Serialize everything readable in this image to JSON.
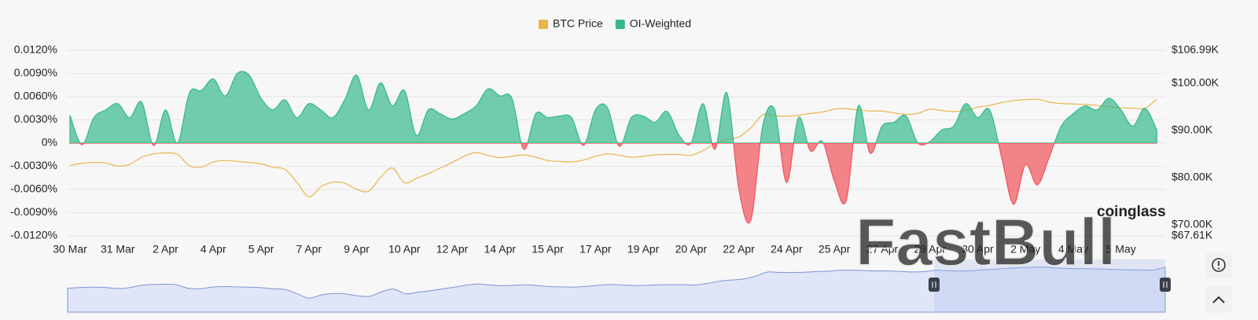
{
  "chart_data": {
    "type": "area",
    "categories": [
      "30 Mar",
      null,
      null,
      null,
      "31 Mar",
      null,
      null,
      null,
      "2 Apr",
      null,
      null,
      null,
      "4 Apr",
      null,
      null,
      null,
      "5 Apr",
      null,
      null,
      null,
      "7 Apr",
      null,
      null,
      null,
      "9 Apr",
      null,
      null,
      null,
      "10 Apr",
      null,
      null,
      null,
      "12 Apr",
      null,
      null,
      null,
      "14 Apr",
      null,
      null,
      null,
      "15 Apr",
      null,
      null,
      null,
      "17 Apr",
      null,
      null,
      null,
      "19 Apr",
      null,
      null,
      null,
      "20 Apr",
      null,
      null,
      null,
      "22 Apr",
      null,
      null,
      null,
      "24 Apr",
      null,
      null,
      null,
      "25 Apr",
      null,
      null,
      null,
      "27 Apr",
      null,
      null,
      null,
      "29 Apr",
      null,
      null,
      null,
      "30 Apr",
      null,
      null,
      null,
      "2 May",
      null,
      null,
      null,
      "4 May",
      null,
      null,
      null,
      "5 May",
      null,
      null,
      null
    ],
    "series": [
      {
        "name": "BTC Price",
        "color": "#e8b64a",
        "axis": "y2",
        "type": "line",
        "values": [
          82560,
          83000,
          83200,
          83100,
          82400,
          82800,
          84300,
          85000,
          85200,
          84900,
          82500,
          82200,
          83300,
          83600,
          83400,
          83200,
          82900,
          82200,
          81700,
          79000,
          75900,
          78000,
          79000,
          78800,
          77500,
          77100,
          80000,
          82000,
          78900,
          79800,
          80800,
          82000,
          83200,
          84500,
          85300,
          84700,
          84200,
          84500,
          84800,
          84300,
          83600,
          83400,
          83300,
          83700,
          84500,
          85000,
          84700,
          84300,
          84500,
          84800,
          84900,
          84900,
          84700,
          85700,
          87200,
          88000,
          88600,
          90500,
          93300,
          93100,
          93000,
          93200,
          93600,
          93900,
          94500,
          94600,
          94300,
          94100,
          94100,
          93700,
          93400,
          93600,
          94500,
          94200,
          94000,
          94300,
          94900,
          95300,
          95900,
          96300,
          96500,
          96600,
          96000,
          95700,
          95600,
          95500,
          95300,
          95000,
          94800,
          94700,
          94700,
          96600
        ]
      },
      {
        "name": "OI-Weighted",
        "color": "#36b98a",
        "negative_color": "#f0525a",
        "type": "area",
        "values": [
          0.0036,
          -0.0002,
          0.0033,
          0.0043,
          0.0051,
          0.0033,
          0.0053,
          -0.0003,
          0.0043,
          0.0,
          0.0065,
          0.0068,
          0.0083,
          0.0061,
          0.009,
          0.0088,
          0.0058,
          0.0043,
          0.0056,
          0.0033,
          0.0051,
          0.0043,
          0.0033,
          0.0056,
          0.0088,
          0.0043,
          0.0078,
          0.0048,
          0.0068,
          0.001,
          0.0043,
          0.0038,
          0.0031,
          0.0038,
          0.0048,
          0.007,
          0.0061,
          0.0058,
          -0.0008,
          0.0038,
          0.0033,
          0.0035,
          0.0033,
          -0.0003,
          0.0043,
          0.0046,
          -0.0004,
          0.0033,
          0.0035,
          0.0027,
          0.0041,
          0.001,
          0.0,
          0.0051,
          -0.0008,
          0.0065,
          -0.0059,
          -0.01,
          0.0022,
          0.0043,
          -0.0051,
          0.0033,
          -0.001,
          0.0002,
          -0.0049,
          -0.0074,
          0.0048,
          -0.0013,
          0.0022,
          0.0027,
          0.0035,
          0.0,
          0.0002,
          0.0017,
          0.0022,
          0.0051,
          0.0033,
          0.0043,
          -0.0018,
          -0.0079,
          -0.0028,
          -0.0054,
          -0.0018,
          0.0022,
          0.0038,
          0.0048,
          0.0043,
          0.0058,
          0.0043,
          0.0022,
          0.0045,
          0.0017
        ]
      }
    ],
    "ylim": [
      -0.012,
      0.012
    ],
    "yticks": [
      {
        "value": -0.012,
        "label": "-0.0120%"
      },
      {
        "value": -0.009,
        "label": "-0.0090%"
      },
      {
        "value": -0.006,
        "label": "-0.0060%"
      },
      {
        "value": -0.003,
        "label": "-0.0030%"
      },
      {
        "value": 0,
        "label": "0%"
      },
      {
        "value": 0.003,
        "label": "0.0030%"
      },
      {
        "value": 0.006,
        "label": "0.0060%"
      },
      {
        "value": 0.009,
        "label": "0.0090%"
      },
      {
        "value": 0.012,
        "label": "0.0120%"
      }
    ],
    "y2lim": [
      67610,
      106990
    ],
    "y2ticks": [
      {
        "value": 67610,
        "label": "$67.61K"
      },
      {
        "value": 70000,
        "label": "$70.00K"
      },
      {
        "value": 80000,
        "label": "$80.00K"
      },
      {
        "value": 90000,
        "label": "$90.00K"
      },
      {
        "value": 100000,
        "label": "$100.00K"
      },
      {
        "value": 106990,
        "label": "$106.99K"
      }
    ],
    "grid": true,
    "legend": "top",
    "watermarks": [
      "coinglass",
      "FastBull"
    ]
  }
}
